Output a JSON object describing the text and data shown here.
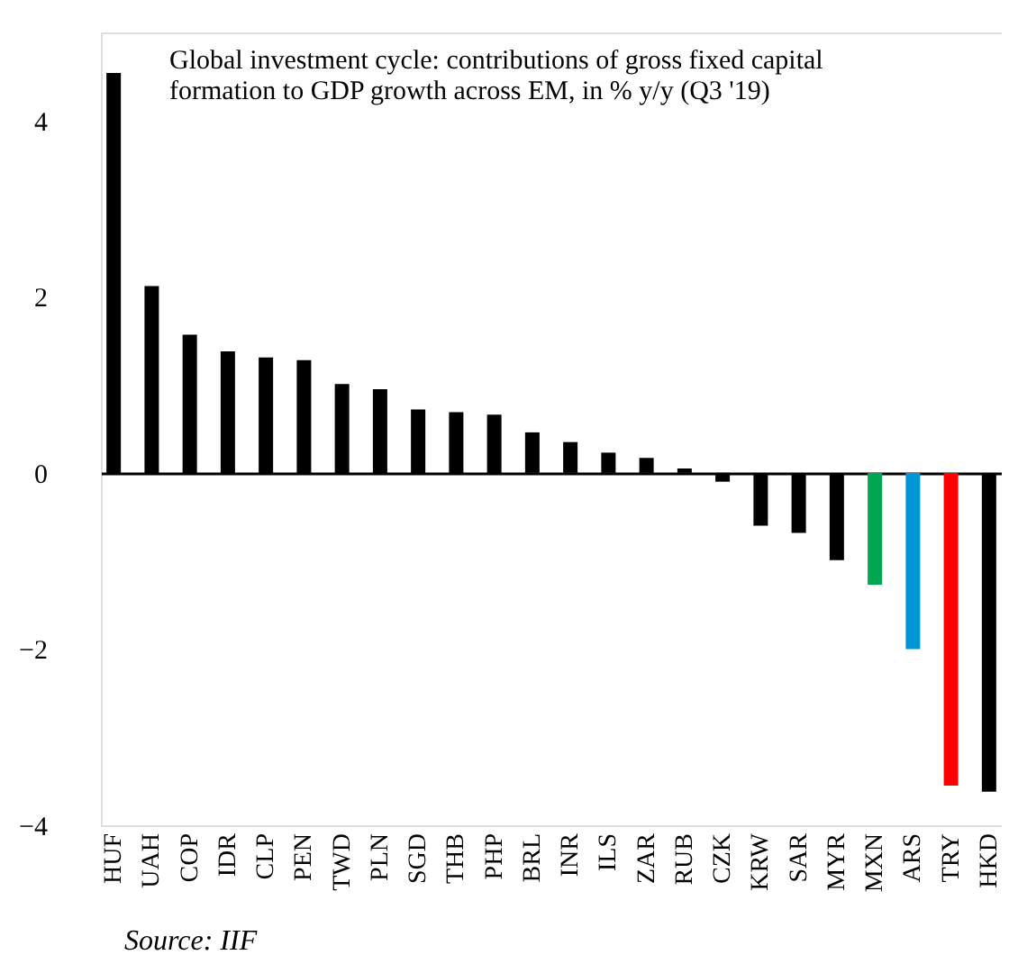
{
  "chart_data": {
    "type": "bar",
    "title": "Global investment cycle: contributions of gross fixed capital\nformation to GDP growth across EM, in % y/y (Q3 '19)",
    "categories": [
      "HUF",
      "UAH",
      "COP",
      "IDR",
      "CLP",
      "PEN",
      "TWD",
      "PLN",
      "SGD",
      "THB",
      "PHP",
      "BRL",
      "INR",
      "ILS",
      "ZAR",
      "RUB",
      "CZK",
      "KRW",
      "SAR",
      "MYR",
      "MXN",
      "ARS",
      "TRY",
      "HKD"
    ],
    "values": [
      4.54,
      2.12,
      1.57,
      1.38,
      1.31,
      1.28,
      1.01,
      0.95,
      0.72,
      0.69,
      0.66,
      0.46,
      0.35,
      0.23,
      0.17,
      0.05,
      -0.1,
      -0.6,
      -0.68,
      -0.99,
      -1.27,
      -2.0,
      -3.55,
      -3.62
    ],
    "colors": [
      "#000000",
      "#000000",
      "#000000",
      "#000000",
      "#000000",
      "#000000",
      "#000000",
      "#000000",
      "#000000",
      "#000000",
      "#000000",
      "#000000",
      "#000000",
      "#000000",
      "#000000",
      "#000000",
      "#000000",
      "#000000",
      "#000000",
      "#000000",
      "#00a651",
      "#0096d6",
      "#ff0000",
      "#000000"
    ],
    "ylim": [
      -4,
      5
    ],
    "yticks": [
      -4,
      -2,
      0,
      2,
      4
    ],
    "annotations": [
      "Source: IIF"
    ]
  }
}
